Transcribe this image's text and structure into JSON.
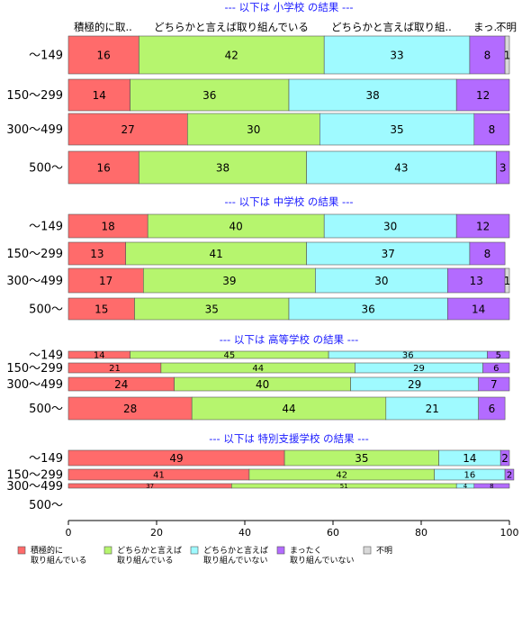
{
  "chart_data": {
    "type": "bar",
    "orientation": "horizontal",
    "stacked": true,
    "xlim": [
      0,
      100
    ],
    "xticks": [
      "0",
      "20",
      "40",
      "60",
      "80",
      "100"
    ],
    "column_headers": [
      "積極的に取..",
      "どちらかと言えば取り組んでいる",
      "どちらかと言えば取り組..",
      "まっ..",
      "不明"
    ],
    "legend": [
      {
        "line1": "積極的に",
        "line2": "取り組んでいる",
        "color": "#ff6b6b"
      },
      {
        "line1": "どちらかと言えば",
        "line2": "取り組んでいる",
        "color": "#b6f56e"
      },
      {
        "line1": "どちらかと言えば",
        "line2": "取り組んでいない",
        "color": "#9ffaff"
      },
      {
        "line1": "まったく",
        "line2": "取り組んでいない",
        "color": "#b36bff"
      },
      {
        "line1": "不明",
        "line2": "",
        "color": "#d9d9d9"
      }
    ],
    "legend_position": "bottom",
    "sections": [
      {
        "title": "--- 以下は 小学校 の結果 ---",
        "rows": [
          {
            "label": "〜149",
            "values": [
              16,
              42,
              33,
              8,
              1
            ]
          },
          {
            "label": "150〜299",
            "values": [
              14,
              36,
              38,
              12,
              0
            ]
          },
          {
            "label": "300〜499",
            "values": [
              27,
              30,
              35,
              8,
              0
            ]
          },
          {
            "label": "500〜",
            "values": [
              16,
              38,
              43,
              3,
              0
            ]
          }
        ]
      },
      {
        "title": "--- 以下は 中学校 の結果 ---",
        "rows": [
          {
            "label": "〜149",
            "values": [
              18,
              40,
              30,
              12,
              0
            ]
          },
          {
            "label": "150〜299",
            "values": [
              13,
              41,
              37,
              8,
              0
            ]
          },
          {
            "label": "300〜499",
            "values": [
              17,
              39,
              30,
              13,
              1
            ]
          },
          {
            "label": "500〜",
            "values": [
              15,
              35,
              36,
              14,
              0
            ]
          }
        ]
      },
      {
        "title": "--- 以下は 高等学校 の結果 ---",
        "rows": [
          {
            "label": "〜149",
            "values": [
              14,
              45,
              36,
              5,
              0
            ]
          },
          {
            "label": "150〜299",
            "values": [
              21,
              44,
              29,
              6,
              0
            ]
          },
          {
            "label": "300〜499",
            "values": [
              24,
              40,
              29,
              7,
              0
            ]
          },
          {
            "label": "500〜",
            "values": [
              28,
              44,
              21,
              6,
              0
            ]
          }
        ]
      },
      {
        "title": "--- 以下は 特別支援学校 の結果 ---",
        "rows": [
          {
            "label": "〜149",
            "values": [
              49,
              35,
              14,
              2,
              0
            ]
          },
          {
            "label": "150〜299",
            "values": [
              41,
              42,
              16,
              2,
              0
            ]
          },
          {
            "label": "300〜499",
            "values": [
              37,
              51,
              4,
              8,
              0
            ]
          },
          {
            "label": "500〜",
            "values": [
              0,
              0,
              0,
              0,
              0
            ]
          }
        ]
      }
    ]
  }
}
